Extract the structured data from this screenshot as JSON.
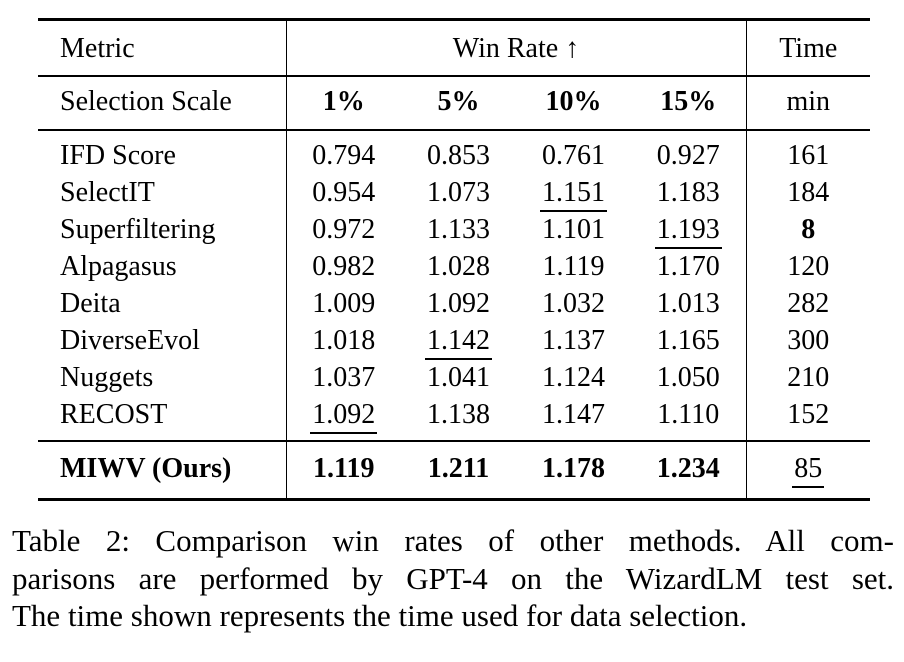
{
  "table": {
    "header": {
      "metric": "Metric",
      "win_rate": "Win Rate",
      "win_rate_arrow": "↑",
      "time": "Time",
      "selection_scale": "Selection Scale",
      "scales": [
        "1%",
        "5%",
        "10%",
        "15%"
      ],
      "time_unit": "min"
    },
    "rows": [
      {
        "metric": "IFD Score",
        "values": [
          "0.794",
          "0.853",
          "0.761",
          "0.927"
        ],
        "time": "161"
      },
      {
        "metric": "SelectIT",
        "values": [
          "0.954",
          "1.073",
          "1.151",
          "1.183"
        ],
        "time": "184"
      },
      {
        "metric": "Superfiltering",
        "values": [
          "0.972",
          "1.133",
          "1.101",
          "1.193"
        ],
        "time": "8"
      },
      {
        "metric": "Alpagasus",
        "values": [
          "0.982",
          "1.028",
          "1.119",
          "1.170"
        ],
        "time": "120"
      },
      {
        "metric": "Deita",
        "values": [
          "1.009",
          "1.092",
          "1.032",
          "1.013"
        ],
        "time": "282"
      },
      {
        "metric": "DiverseEvol",
        "values": [
          "1.018",
          "1.142",
          "1.137",
          "1.165"
        ],
        "time": "300"
      },
      {
        "metric": "Nuggets",
        "values": [
          "1.037",
          "1.041",
          "1.124",
          "1.050"
        ],
        "time": "210"
      },
      {
        "metric": "RECOST",
        "values": [
          "1.092",
          "1.138",
          "1.147",
          "1.110"
        ],
        "time": "152"
      }
    ],
    "ours": {
      "metric": "MIWV (Ours)",
      "values": [
        "1.119",
        "1.211",
        "1.178",
        "1.234"
      ],
      "time": "85"
    }
  },
  "caption": {
    "lines": [
      "Table 2: Comparison win rates of other methods. All com-",
      "parisons are performed by GPT-4 on the WizardLM test set.",
      "The time shown represents the time used for data selection."
    ]
  }
}
